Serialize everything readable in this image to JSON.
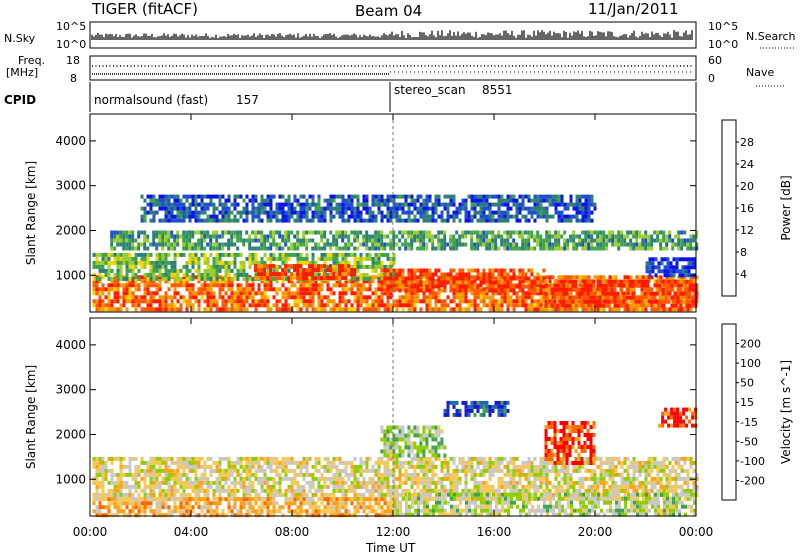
{
  "header": {
    "station": "TIGER (fitACF)",
    "beam": "Beam 04",
    "date": "11/Jan/2011"
  },
  "strip_labels": {
    "nsky": "N.Sky",
    "nsearch": "N.Search",
    "freq_line1": "Freq.",
    "freq_line2": "[MHz]",
    "nave": "Nave",
    "cpid": "CPID",
    "nsky_ticks": [
      "10^5",
      "10^0"
    ],
    "nsearch_ticks": [
      "10^5",
      "10^0"
    ],
    "freq_ticks": [
      "18",
      "8"
    ],
    "nave_ticks": [
      "60",
      "0"
    ]
  },
  "cpid_segments": [
    {
      "name": "normalsound (fast)",
      "id": "157",
      "start": "00:00",
      "end": "12:00"
    },
    {
      "name": "stereo_scan",
      "id": "8551",
      "start": "12:00",
      "end": "24:00"
    }
  ],
  "colors": {
    "power": [
      "#0a14e6",
      "#1e4fd1",
      "#2e7f78",
      "#3fa24c",
      "#9acd32",
      "#f5d400",
      "#f59a00",
      "#ff5a00",
      "#ff1a00"
    ],
    "velocity": [
      "#ff0000",
      "#ff6a00",
      "#ffa21a",
      "#f5c85a",
      "#c8c8c8",
      "#8fce00",
      "#3fa24c",
      "#1e6ab0",
      "#1a1acc"
    ]
  },
  "chart_data": [
    {
      "type": "heatmap",
      "name": "power-panel",
      "ylabel": "Slant Range [km]",
      "yticks": [
        1000,
        2000,
        3000,
        4000
      ],
      "ylim": [
        180,
        4600
      ],
      "xlim_hours": [
        0,
        24
      ],
      "colorbar_label": "Power [dB]",
      "colorbar_ticks": [
        "4",
        "8",
        "12",
        "16",
        "20",
        "24",
        "28"
      ],
      "regions": [
        {
          "t0": 0.1,
          "t1": 24,
          "r0": 200,
          "r1": 1000,
          "v": 0.85
        },
        {
          "t0": 0.1,
          "t1": 12,
          "r0": 900,
          "r1": 1500,
          "v": 0.45
        },
        {
          "t0": 6.5,
          "t1": 10.5,
          "r0": 950,
          "r1": 1250,
          "v": 0.95
        },
        {
          "t0": 11.5,
          "t1": 18,
          "r0": 700,
          "r1": 1150,
          "v": 0.95
        },
        {
          "t0": 18,
          "t1": 24,
          "r0": 300,
          "r1": 900,
          "v": 0.95
        },
        {
          "t0": 0.8,
          "t1": 24,
          "r0": 1600,
          "r1": 2000,
          "v": 0.35
        },
        {
          "t0": 2,
          "t1": 20,
          "r0": 2200,
          "r1": 2800,
          "v": 0.15
        },
        {
          "t0": 22,
          "t1": 24,
          "r0": 1000,
          "r1": 1400,
          "v": 0.05
        }
      ]
    },
    {
      "type": "heatmap",
      "name": "velocity-panel",
      "ylabel": "Slant Range [km]",
      "yticks": [
        1000,
        2000,
        3000,
        4000
      ],
      "ylim": [
        180,
        4600
      ],
      "xlim_hours": [
        0,
        24
      ],
      "colorbar_label": "Velocity [m s^-1]",
      "colorbar_ticks": [
        "-200",
        "-100",
        "-50",
        "-15",
        "15",
        "50",
        "100",
        "200"
      ],
      "regions": [
        {
          "t0": 0.1,
          "t1": 24,
          "r0": 600,
          "r1": 1500,
          "v": 0.45
        },
        {
          "t0": 0.1,
          "t1": 12,
          "r0": 200,
          "r1": 600,
          "v": 0.3
        },
        {
          "t0": 12,
          "t1": 24,
          "r0": 200,
          "r1": 700,
          "v": 0.55
        },
        {
          "t0": 14,
          "t1": 16.5,
          "r0": 2400,
          "r1": 2750,
          "v": 0.95
        },
        {
          "t0": 18,
          "t1": 20,
          "r0": 1400,
          "r1": 2300,
          "v": 0.05
        },
        {
          "t0": 11.5,
          "t1": 14,
          "r0": 1500,
          "r1": 2200,
          "v": 0.6
        },
        {
          "t0": 22.5,
          "t1": 24,
          "r0": 2200,
          "r1": 2600,
          "v": 0.05
        }
      ]
    }
  ],
  "x_axis": {
    "ticks": [
      "00:00",
      "04:00",
      "08:00",
      "12:00",
      "16:00",
      "20:00",
      "00:00"
    ],
    "label": "Time UT"
  }
}
